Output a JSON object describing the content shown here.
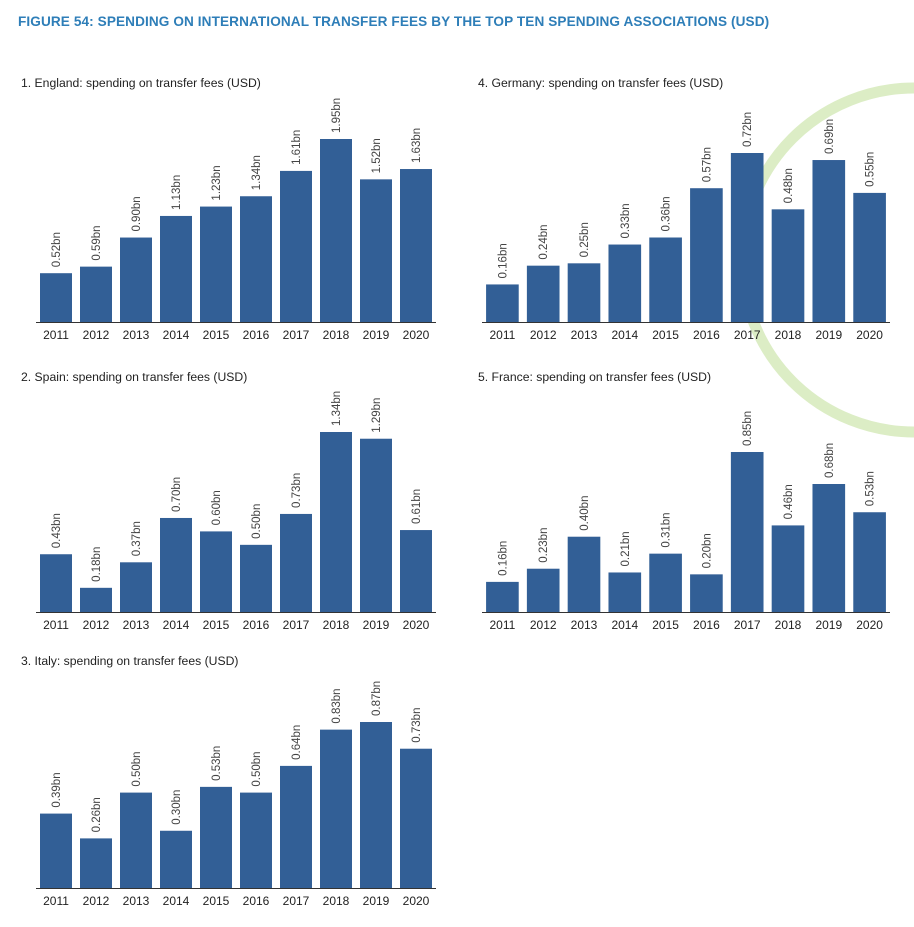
{
  "figure_title": "FIGURE 54: SPENDING ON INTERNATIONAL TRANSFER FEES BY THE TOP TEN SPENDING ASSOCIATIONS (USD)",
  "colors": {
    "bar": "#325f96",
    "title": "#2e7eb8",
    "decor_arc": "#dcedc5",
    "axis": "#333333"
  },
  "chart_data": [
    {
      "id": "england",
      "type": "bar",
      "title": "1. England: spending on transfer fees (USD)",
      "categories": [
        "2011",
        "2012",
        "2013",
        "2014",
        "2015",
        "2016",
        "2017",
        "2018",
        "2019",
        "2020"
      ],
      "values": [
        0.52,
        0.59,
        0.9,
        1.13,
        1.23,
        1.34,
        1.61,
        1.95,
        1.52,
        1.63
      ],
      "value_labels": [
        "0.52bn",
        "0.59bn",
        "0.90bn",
        "1.13bn",
        "1.23bn",
        "1.34bn",
        "1.61bn",
        "1.95bn",
        "1.52bn",
        "1.63bn"
      ],
      "unit": "USD bn",
      "ylim": [
        0,
        1.95
      ]
    },
    {
      "id": "germany",
      "type": "bar",
      "title": "4. Germany: spending on transfer fees (USD)",
      "categories": [
        "2011",
        "2012",
        "2013",
        "2014",
        "2015",
        "2016",
        "2017",
        "2018",
        "2019",
        "2020"
      ],
      "values": [
        0.16,
        0.24,
        0.25,
        0.33,
        0.36,
        0.57,
        0.72,
        0.48,
        0.69,
        0.55
      ],
      "value_labels": [
        "0.16bn",
        "0.24bn",
        "0.25bn",
        "0.33bn",
        "0.36bn",
        "0.57bn",
        "0.72bn",
        "0.48bn",
        "0.69bn",
        "0.55bn"
      ],
      "unit": "USD bn",
      "ylim": [
        0,
        0.72
      ]
    },
    {
      "id": "spain",
      "type": "bar",
      "title": "2. Spain: spending on transfer fees (USD)",
      "categories": [
        "2011",
        "2012",
        "2013",
        "2014",
        "2015",
        "2016",
        "2017",
        "2018",
        "2019",
        "2020"
      ],
      "values": [
        0.43,
        0.18,
        0.37,
        0.7,
        0.6,
        0.5,
        0.73,
        1.34,
        1.29,
        0.61
      ],
      "value_labels": [
        "0.43bn",
        "0.18bn",
        "0.37bn",
        "0.70bn",
        "0.60bn",
        "0.50bn",
        "0.73bn",
        "1.34bn",
        "1.29bn",
        "0.61bn"
      ],
      "unit": "USD bn",
      "ylim": [
        0,
        1.34
      ]
    },
    {
      "id": "france",
      "type": "bar",
      "title": "5. France: spending on transfer fees (USD)",
      "categories": [
        "2011",
        "2012",
        "2013",
        "2014",
        "2015",
        "2016",
        "2017",
        "2018",
        "2019",
        "2020"
      ],
      "values": [
        0.16,
        0.23,
        0.4,
        0.21,
        0.31,
        0.2,
        0.85,
        0.46,
        0.68,
        0.53
      ],
      "value_labels": [
        "0.16bn",
        "0.23bn",
        "0.40bn",
        "0.21bn",
        "0.31bn",
        "0.20bn",
        "0.85bn",
        "0.46bn",
        "0.68bn",
        "0.53bn"
      ],
      "unit": "USD bn",
      "ylim": [
        0,
        0.85
      ]
    },
    {
      "id": "italy",
      "type": "bar",
      "title": "3. Italy: spending on transfer fees (USD)",
      "categories": [
        "2011",
        "2012",
        "2013",
        "2014",
        "2015",
        "2016",
        "2017",
        "2018",
        "2019",
        "2020"
      ],
      "values": [
        0.39,
        0.26,
        0.5,
        0.3,
        0.53,
        0.5,
        0.64,
        0.83,
        0.87,
        0.73
      ],
      "value_labels": [
        "0.39bn",
        "0.26bn",
        "0.50bn",
        "0.30bn",
        "0.53bn",
        "0.50bn",
        "0.64bn",
        "0.83bn",
        "0.87bn",
        "0.73bn"
      ],
      "unit": "USD bn",
      "ylim": [
        0,
        0.87
      ]
    }
  ]
}
